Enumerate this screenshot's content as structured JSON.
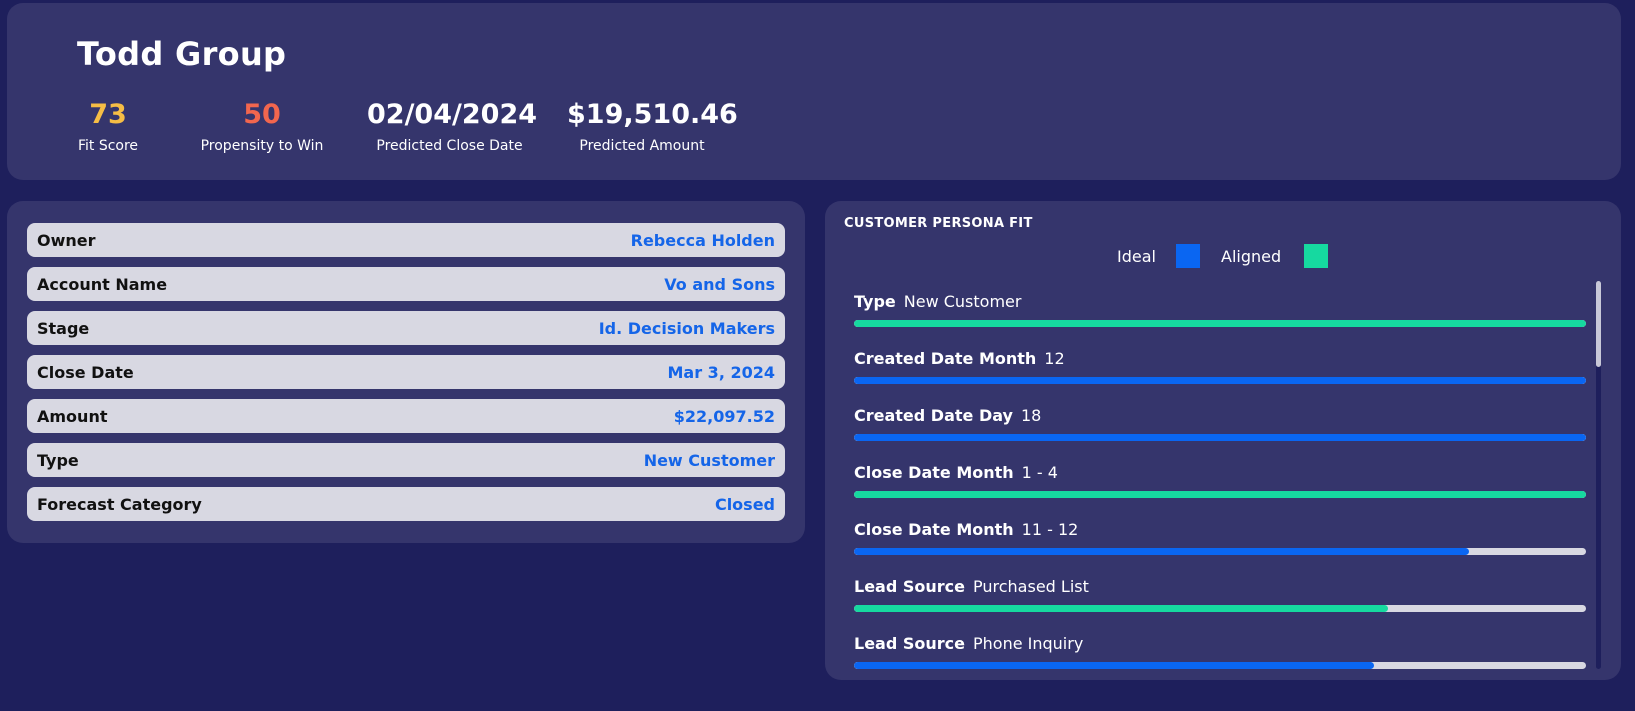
{
  "header": {
    "title": "Todd Group",
    "kpis": [
      {
        "value": "73",
        "label": "Fit Score",
        "color": "#f6bd45"
      },
      {
        "value": "50",
        "label": "Propensity to Win",
        "color": "#f2664e"
      },
      {
        "value": "02/04/2024",
        "label": "Predicted Close Date",
        "color": "#ffffff"
      },
      {
        "value": "$19,510.46",
        "label": "Predicted Amount",
        "color": "#ffffff"
      }
    ]
  },
  "details": [
    {
      "key": "Owner",
      "value": "Rebecca Holden"
    },
    {
      "key": "Account Name",
      "value": "Vo and Sons"
    },
    {
      "key": "Stage",
      "value": "Id. Decision Makers"
    },
    {
      "key": "Close Date",
      "value": "Mar 3, 2024"
    },
    {
      "key": "Amount",
      "value": "$22,097.52"
    },
    {
      "key": "Type",
      "value": "New Customer"
    },
    {
      "key": "Forecast Category",
      "value": "Closed"
    }
  ],
  "persona": {
    "title": "CUSTOMER PERSONA FIT",
    "legend": {
      "ideal_label": "Ideal",
      "aligned_label": "Aligned",
      "ideal_color": "#0a66f2",
      "aligned_color": "#16d9a0"
    },
    "items": [
      {
        "name": "Type",
        "value": "New Customer",
        "kind": "aligned",
        "fill": 1.0
      },
      {
        "name": "Created Date Month",
        "value": "12",
        "kind": "ideal",
        "fill": 1.0
      },
      {
        "name": "Created Date Day",
        "value": "18",
        "kind": "ideal",
        "fill": 1.0
      },
      {
        "name": "Close Date Month",
        "value": "1 - 4",
        "kind": "aligned",
        "fill": 1.0
      },
      {
        "name": "Close Date Month",
        "value": "11 - 12",
        "kind": "ideal",
        "fill": 0.84
      },
      {
        "name": "Lead Source",
        "value": "Purchased List",
        "kind": "aligned",
        "fill": 0.73
      },
      {
        "name": "Lead Source",
        "value": "Phone Inquiry",
        "kind": "ideal",
        "fill": 0.71
      }
    ]
  }
}
